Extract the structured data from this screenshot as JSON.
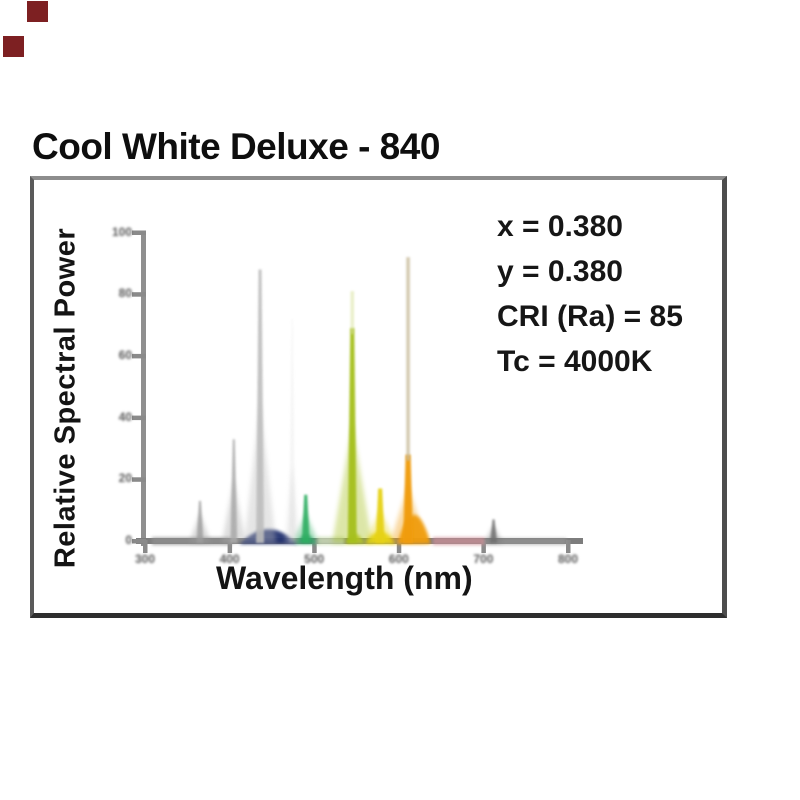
{
  "title": "Cool White Deluxe - 840",
  "artifacts": {
    "square_color": "#7d2022"
  },
  "panel": {
    "border_top_color": "#8d8d8d",
    "border_bottom_color": "#2e2e2e",
    "background": "#ffffff"
  },
  "chart_data": {
    "type": "area",
    "title": "Cool White Deluxe - 840",
    "xlabel": "Wavelength (nm)",
    "ylabel": "Relative Spectral Power",
    "xlim": [
      300,
      800
    ],
    "ylim": [
      0,
      100
    ],
    "x_tick_labels": [
      "300",
      "400",
      "500",
      "600",
      "700",
      "800"
    ],
    "y_tick_labels_top_to_bottom": [
      "100",
      "80",
      "60",
      "40",
      "20",
      "0"
    ],
    "grid": false,
    "legend": false,
    "annotations": [
      "x = 0.380",
      "y = 0.380",
      "CRI (Ra) = 85",
      "Tc = 4000K"
    ],
    "axis_color": "#8a8a8a",
    "peaks": [
      {
        "nm": 365,
        "height_pct": 13,
        "color": "#9c9c9c",
        "core_w": 4,
        "halo_w": 11,
        "halo_pct": 9,
        "opacity": 0.8
      },
      {
        "nm": 405,
        "height_pct": 33,
        "color": "#a9a9a9",
        "core_w": 4,
        "halo_w": 12,
        "halo_pct": 20,
        "opacity": 0.85
      },
      {
        "nm": 436,
        "height_pct": 88,
        "color": "#bdbdbd",
        "core_w": 5,
        "halo_w": 16,
        "halo_pct": 45,
        "opacity": 0.9
      },
      {
        "nm": 474,
        "height_pct": 72,
        "color": "#d4d4d4",
        "core_w": 3,
        "halo_w": 7,
        "halo_pct": 25,
        "opacity": 0.22
      },
      {
        "nm": 490,
        "height_pct": 15,
        "color": "#2fae62",
        "core_w": 5,
        "halo_w": 13,
        "halo_pct": 9,
        "opacity": 0.9
      },
      {
        "nm": 545,
        "height_pct": 69,
        "color": "#a5c01b",
        "core_w": 6,
        "halo_w": 20,
        "halo_pct": 38,
        "opacity": 0.95,
        "tip": {
          "to_pct": 81,
          "color": "#d8e29e",
          "opacity": 0.55
        }
      },
      {
        "nm": 578,
        "height_pct": 17,
        "color": "#e6d219",
        "core_w": 6,
        "halo_w": 16,
        "halo_pct": 10,
        "opacity": 0.95
      },
      {
        "nm": 611,
        "height_pct": 28,
        "color": "#f09c0f",
        "core_w": 7,
        "halo_w": 18,
        "halo_pct": 18,
        "opacity": 0.97,
        "tip": {
          "to_pct": 92,
          "color": "#c9bd9d",
          "opacity": 0.8
        }
      },
      {
        "nm": 712,
        "height_pct": 7,
        "color": "#6f6f6f",
        "core_w": 4,
        "halo_w": 9,
        "halo_pct": 5,
        "opacity": 0.85
      }
    ],
    "bands": [
      {
        "from_nm": 308,
        "to_nm": 402,
        "height_pct": 1.2,
        "color": "#909090",
        "opacity": 0.75,
        "shape": "flat"
      },
      {
        "from_nm": 412,
        "to_nm": 480,
        "height_pct": 4.3,
        "color": "#23306f",
        "opacity": 0.95,
        "shape": "mound"
      },
      {
        "from_nm": 478,
        "to_nm": 503,
        "height_pct": 2.6,
        "color": "#2da06b",
        "opacity": 0.8,
        "shape": "mound"
      },
      {
        "from_nm": 503,
        "to_nm": 536,
        "height_pct": 1.4,
        "color": "#cfe0b8",
        "opacity": 0.8,
        "shape": "flat"
      },
      {
        "from_nm": 536,
        "to_nm": 560,
        "height_pct": 2.8,
        "color": "#bfcc27",
        "opacity": 0.85,
        "shape": "mound"
      },
      {
        "from_nm": 560,
        "to_nm": 596,
        "height_pct": 3.6,
        "color": "#e8d518",
        "opacity": 0.95,
        "shape": "mound"
      },
      {
        "from_nm": 598,
        "to_nm": 638,
        "height_pct": 9.0,
        "color": "#f09d10",
        "opacity": 0.95,
        "shape": "mound"
      },
      {
        "from_nm": 640,
        "to_nm": 702,
        "height_pct": 1.2,
        "color": "#cf8f96",
        "opacity": 0.75,
        "shape": "flat"
      },
      {
        "from_nm": 702,
        "to_nm": 798,
        "height_pct": 0.9,
        "color": "#9b9b9b",
        "opacity": 0.6,
        "shape": "flat"
      }
    ]
  }
}
